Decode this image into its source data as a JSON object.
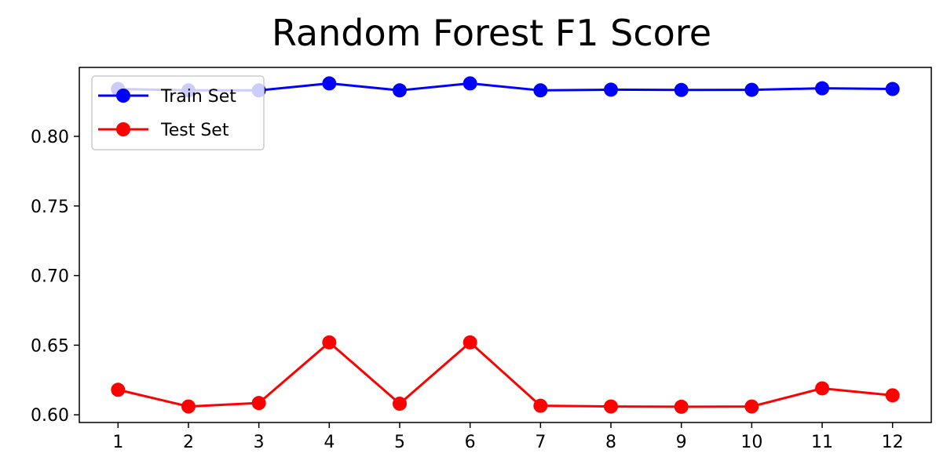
{
  "chart_data": {
    "type": "line",
    "title": "Random Forest F1 Score",
    "xlabel": "",
    "ylabel": "",
    "x": [
      1,
      2,
      3,
      4,
      5,
      6,
      7,
      8,
      9,
      10,
      11,
      12
    ],
    "xlim": [
      0.45,
      12.55
    ],
    "ylim": [
      0.5945,
      0.8495
    ],
    "yticks": [
      0.6,
      0.65,
      0.7,
      0.75,
      0.8
    ],
    "ytick_labels": [
      "0.60",
      "0.65",
      "0.70",
      "0.75",
      "0.80"
    ],
    "xtick_labels": [
      "1",
      "2",
      "3",
      "4",
      "5",
      "6",
      "7",
      "8",
      "9",
      "10",
      "11",
      "12"
    ],
    "grid": false,
    "legend_position": "top-left",
    "series": [
      {
        "name": "Train Set",
        "color": "#0000ff",
        "marker": "circle",
        "values": [
          0.834,
          0.833,
          0.833,
          0.838,
          0.833,
          0.838,
          0.833,
          0.8335,
          0.8333,
          0.8334,
          0.8345,
          0.834
        ]
      },
      {
        "name": "Test Set",
        "color": "#ff0000",
        "marker": "circle",
        "values": [
          0.618,
          0.606,
          0.6085,
          0.652,
          0.608,
          0.652,
          0.6065,
          0.606,
          0.6058,
          0.606,
          0.619,
          0.614
        ]
      }
    ]
  }
}
